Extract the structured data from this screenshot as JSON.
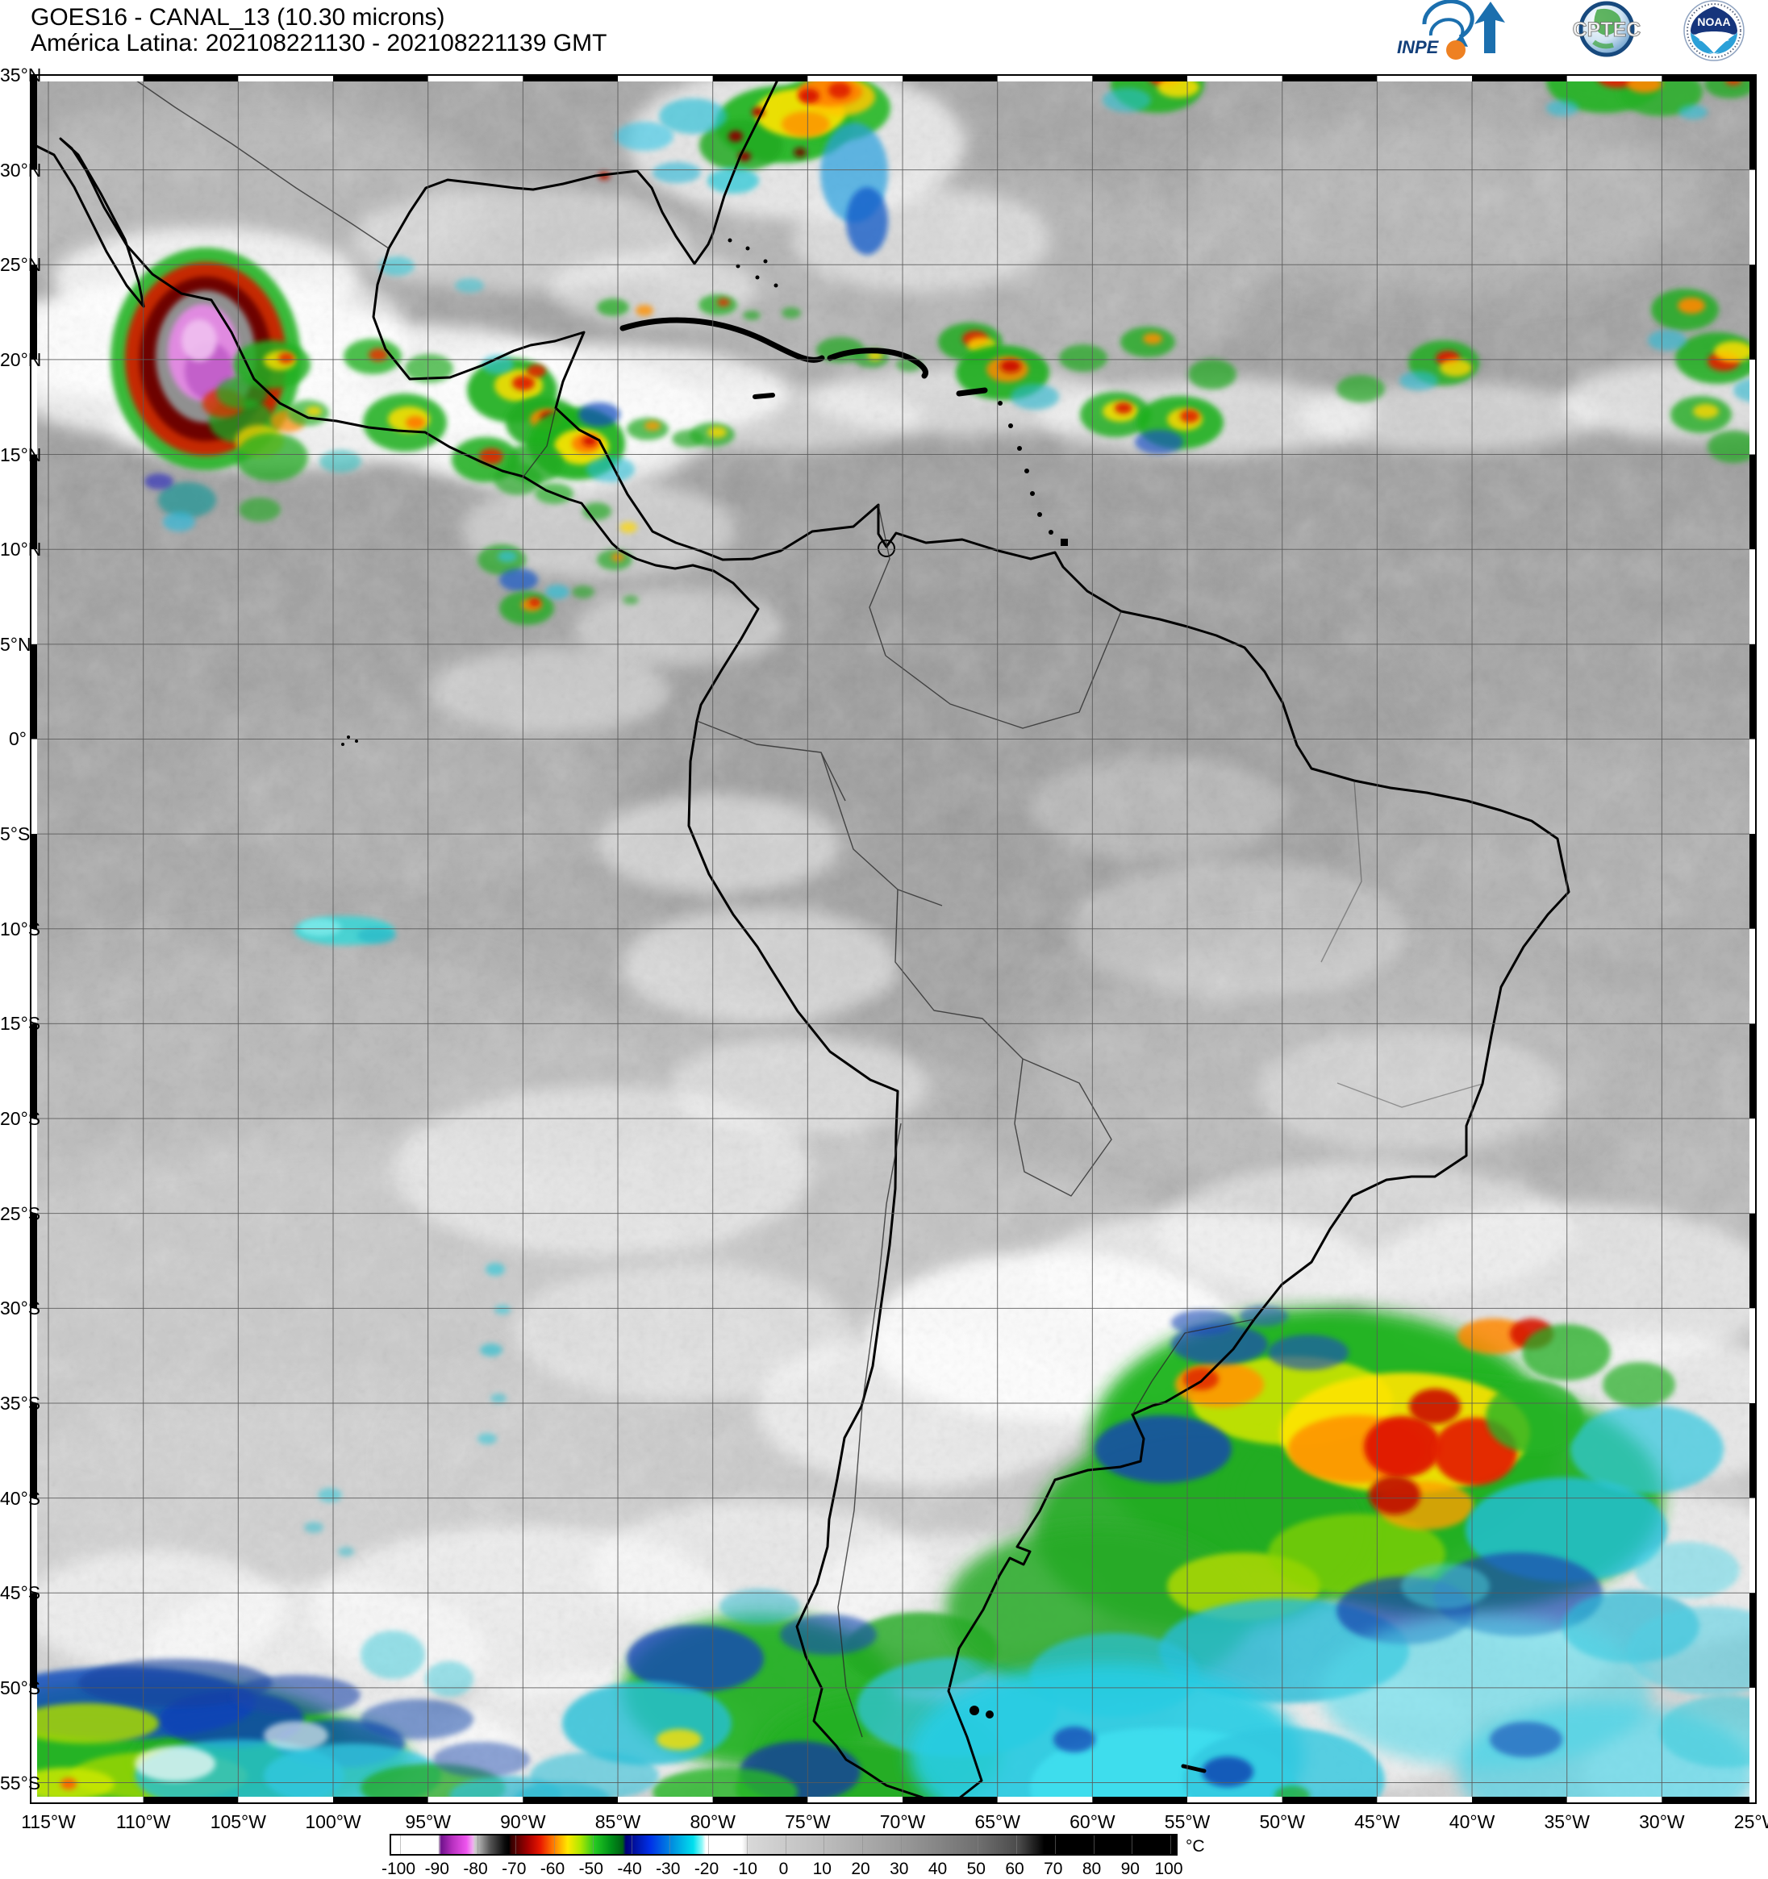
{
  "header": {
    "title_line1": "GOES16 - CANAL_13 (10.30 microns)",
    "title_line2": "América Latina: 202108221130 - 202108221139 GMT"
  },
  "logos": {
    "inpe_label": "INPE",
    "cptec_label": "CPTEC",
    "noaa_label": "NOAA"
  },
  "map": {
    "lat_labels": [
      "35°N",
      "30°N",
      "25°N",
      "20°N",
      "15°N",
      "10°N",
      "5°N",
      "0°",
      "5°S",
      "10°S",
      "15°S",
      "20°S",
      "25°S",
      "30°S",
      "35°S",
      "40°S",
      "45°S",
      "50°S",
      "55°S"
    ],
    "lon_labels": [
      "115°W",
      "110°W",
      "105°W",
      "100°W",
      "95°W",
      "90°W",
      "85°W",
      "80°W",
      "75°W",
      "70°W",
      "65°W",
      "60°W",
      "55°W",
      "50°W",
      "45°W",
      "40°W",
      "35°W",
      "30°W",
      "25°W"
    ]
  },
  "colorbar": {
    "unit": "°C",
    "tick_labels": [
      "-100",
      "-90",
      "-80",
      "-70",
      "-60",
      "-50",
      "-40",
      "-30",
      "-20",
      "-10",
      "0",
      "10",
      "20",
      "30",
      "40",
      "50",
      "60",
      "70",
      "80",
      "90",
      "100"
    ],
    "gradient_stops": [
      [
        0.0,
        "#ffffff"
      ],
      [
        0.06,
        "#ffffff"
      ],
      [
        0.0635,
        "#70128c"
      ],
      [
        0.078,
        "#b830c0"
      ],
      [
        0.096,
        "#ee55ee"
      ],
      [
        0.104,
        "#f2aef2"
      ],
      [
        0.107,
        "#cccccc"
      ],
      [
        0.126,
        "#555555"
      ],
      [
        0.145,
        "#0a0a0a"
      ],
      [
        0.15,
        "#000000"
      ],
      [
        0.153,
        "#350000"
      ],
      [
        0.175,
        "#a80000"
      ],
      [
        0.19,
        "#e81800"
      ],
      [
        0.206,
        "#ff7800"
      ],
      [
        0.225,
        "#ffe800"
      ],
      [
        0.241,
        "#b0e800"
      ],
      [
        0.26,
        "#22c822"
      ],
      [
        0.28,
        "#009018"
      ],
      [
        0.295,
        "#006014"
      ],
      [
        0.299,
        "#000078"
      ],
      [
        0.33,
        "#0030e8"
      ],
      [
        0.36,
        "#0095e0"
      ],
      [
        0.385,
        "#00e0ee"
      ],
      [
        0.396,
        "#90f8f8"
      ],
      [
        0.401,
        "#ffffff"
      ],
      [
        0.447,
        "#ffffff"
      ],
      [
        0.456,
        "#d8d8d8"
      ],
      [
        0.55,
        "#bdbdbd"
      ],
      [
        0.65,
        "#9a9a9a"
      ],
      [
        0.75,
        "#6e6e6e"
      ],
      [
        0.8,
        "#4a4a4a"
      ],
      [
        0.826,
        "#101010"
      ],
      [
        0.832,
        "#000000"
      ],
      [
        1.0,
        "#000000"
      ]
    ]
  }
}
